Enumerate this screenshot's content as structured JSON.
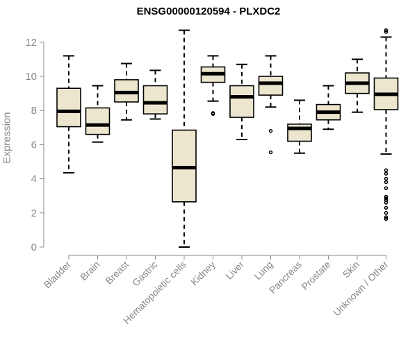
{
  "chart_data": {
    "type": "box",
    "title": "ENSG00000120594 - PLXDC2",
    "xlabel": "",
    "ylabel": "Expression",
    "ylim": [
      0,
      12.5
    ],
    "yticks": [
      0,
      2,
      4,
      6,
      8,
      10,
      12
    ],
    "colors": {
      "box_fill": "#ede6cf",
      "box_stroke": "#000000",
      "median": "#000000",
      "axis": "#888888"
    },
    "categories": [
      "Bladder",
      "Brain",
      "Breast",
      "Gastric",
      "Hematopoietic cells",
      "Kidney",
      "Liver",
      "Lung",
      "Pancreas",
      "Prostate",
      "Skin",
      "Unknown / Other"
    ],
    "boxes": [
      {
        "category": "Bladder",
        "min": 4.35,
        "q1": 7.05,
        "median": 7.95,
        "q3": 9.3,
        "max": 11.2,
        "outliers": []
      },
      {
        "category": "Brain",
        "min": 6.15,
        "q1": 6.6,
        "median": 7.15,
        "q3": 8.15,
        "max": 9.45,
        "outliers": []
      },
      {
        "category": "Breast",
        "min": 7.45,
        "q1": 8.5,
        "median": 9.05,
        "q3": 9.8,
        "max": 10.75,
        "outliers": []
      },
      {
        "category": "Gastric",
        "min": 7.5,
        "q1": 7.8,
        "median": 8.45,
        "q3": 9.45,
        "max": 10.35,
        "outliers": []
      },
      {
        "category": "Hematopoietic cells",
        "min": 0.0,
        "q1": 2.65,
        "median": 4.65,
        "q3": 6.85,
        "max": 12.7,
        "outliers": []
      },
      {
        "category": "Kidney",
        "min": 8.55,
        "q1": 9.65,
        "median": 10.15,
        "q3": 10.55,
        "max": 11.2,
        "outliers": [
          7.85,
          7.8
        ]
      },
      {
        "category": "Liver",
        "min": 6.3,
        "q1": 7.6,
        "median": 8.8,
        "q3": 9.45,
        "max": 10.7,
        "outliers": []
      },
      {
        "category": "Lung",
        "min": 8.2,
        "q1": 8.9,
        "median": 9.6,
        "q3": 10.0,
        "max": 11.2,
        "outliers": [
          6.8,
          5.55
        ]
      },
      {
        "category": "Pancreas",
        "min": 5.5,
        "q1": 6.2,
        "median": 6.95,
        "q3": 7.2,
        "max": 8.6,
        "outliers": []
      },
      {
        "category": "Prostate",
        "min": 6.9,
        "q1": 7.45,
        "median": 7.9,
        "q3": 8.35,
        "max": 9.45,
        "outliers": []
      },
      {
        "category": "Skin",
        "min": 7.9,
        "q1": 9.0,
        "median": 9.6,
        "q3": 10.2,
        "max": 11.0,
        "outliers": []
      },
      {
        "category": "Unknown / Other",
        "min": 5.45,
        "q1": 8.05,
        "median": 8.95,
        "q3": 9.9,
        "max": 12.3,
        "outliers": [
          12.7,
          12.6,
          4.5,
          4.3,
          4.0,
          3.8,
          3.45,
          2.95,
          2.85,
          2.75,
          2.6,
          2.3,
          2.0,
          1.75,
          1.65
        ]
      }
    ]
  }
}
